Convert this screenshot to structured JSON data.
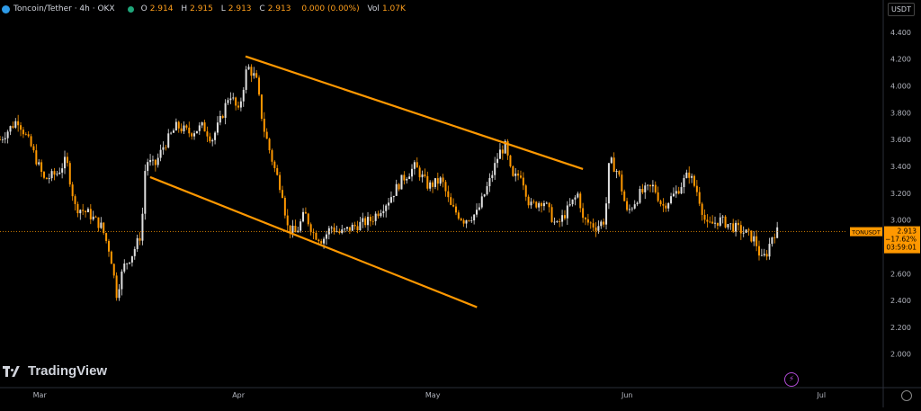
{
  "header": {
    "symbol_title": "Toncoin/Tether · 4h · OKX",
    "ohlc": [
      {
        "k": "O",
        "v": "2.914"
      },
      {
        "k": "H",
        "v": "2.915"
      },
      {
        "k": "L",
        "v": "2.913"
      },
      {
        "k": "C",
        "v": "2.913"
      },
      {
        "k": "",
        "v": "0.000 (0.00%)"
      },
      {
        "k": "Vol",
        "v": "1.07K"
      }
    ]
  },
  "currency_button": "USDT",
  "logo_text": "TradingView",
  "price_tag": {
    "symbol": "TONUSDT",
    "price": "2.913",
    "change": "−17.62%",
    "countdown": "03:59:01"
  },
  "colors": {
    "background": "#000000",
    "candle": "#e0e0e0",
    "accent_orange": "#ff9800",
    "axis_text": "#b2b5be",
    "current_price_line": "#ff9800",
    "tag_bg": "#ff9800"
  },
  "icons": [
    "toncoin-icon",
    "market-open-dot-icon",
    "tradingview-logo-icon",
    "flash-icon",
    "settings-gear-icon"
  ],
  "chart_data": {
    "type": "line",
    "title": "",
    "xlabel": "",
    "ylabel": "",
    "x_tick_labels": [
      "Mar",
      "Apr",
      "May",
      "Jun",
      "Jul"
    ],
    "x_tick_positions": [
      0.045,
      0.27,
      0.49,
      0.71,
      0.93
    ],
    "y_ticks": [
      "2.000",
      "2.200",
      "2.400",
      "2.600",
      "2.800",
      "3.000",
      "3.200",
      "3.400",
      "3.600",
      "3.800",
      "4.000",
      "4.200",
      "4.400"
    ],
    "ylim": [
      1.75,
      4.52
    ],
    "grid": false,
    "series": [
      {
        "values": [
          [
            0.0,
            3.6
          ],
          [
            0.02,
            3.75
          ],
          [
            0.035,
            3.55
          ],
          [
            0.05,
            3.3
          ],
          [
            0.065,
            3.35
          ],
          [
            0.075,
            3.45
          ],
          [
            0.085,
            3.1
          ],
          [
            0.1,
            3.05
          ],
          [
            0.115,
            2.95
          ],
          [
            0.125,
            2.75
          ],
          [
            0.132,
            2.45
          ],
          [
            0.14,
            2.65
          ],
          [
            0.15,
            2.75
          ],
          [
            0.16,
            2.9
          ],
          [
            0.165,
            3.45
          ],
          [
            0.175,
            3.4
          ],
          [
            0.185,
            3.55
          ],
          [
            0.2,
            3.7
          ],
          [
            0.215,
            3.65
          ],
          [
            0.23,
            3.7
          ],
          [
            0.24,
            3.6
          ],
          [
            0.25,
            3.75
          ],
          [
            0.26,
            3.95
          ],
          [
            0.27,
            3.8
          ],
          [
            0.28,
            4.15
          ],
          [
            0.29,
            4.05
          ],
          [
            0.298,
            3.7
          ],
          [
            0.31,
            3.4
          ],
          [
            0.32,
            3.2
          ],
          [
            0.325,
            2.95
          ],
          [
            0.335,
            2.9
          ],
          [
            0.345,
            3.05
          ],
          [
            0.355,
            2.9
          ],
          [
            0.365,
            2.85
          ],
          [
            0.375,
            2.95
          ],
          [
            0.385,
            2.9
          ],
          [
            0.4,
            2.95
          ],
          [
            0.42,
            3.0
          ],
          [
            0.44,
            3.15
          ],
          [
            0.455,
            3.3
          ],
          [
            0.47,
            3.4
          ],
          [
            0.485,
            3.25
          ],
          [
            0.5,
            3.3
          ],
          [
            0.51,
            3.1
          ],
          [
            0.525,
            3.0
          ],
          [
            0.54,
            3.05
          ],
          [
            0.555,
            3.3
          ],
          [
            0.565,
            3.5
          ],
          [
            0.572,
            3.55
          ],
          [
            0.58,
            3.3
          ],
          [
            0.59,
            3.35
          ],
          [
            0.6,
            3.1
          ],
          [
            0.615,
            3.15
          ],
          [
            0.63,
            2.95
          ],
          [
            0.645,
            3.1
          ],
          [
            0.655,
            3.2
          ],
          [
            0.66,
            3.0
          ],
          [
            0.675,
            2.95
          ],
          [
            0.685,
            3.0
          ],
          [
            0.69,
            3.45
          ],
          [
            0.7,
            3.35
          ],
          [
            0.71,
            3.05
          ],
          [
            0.725,
            3.2
          ],
          [
            0.74,
            3.25
          ],
          [
            0.75,
            3.1
          ],
          [
            0.765,
            3.2
          ],
          [
            0.78,
            3.35
          ],
          [
            0.79,
            3.2
          ],
          [
            0.8,
            2.95
          ],
          [
            0.815,
            3.0
          ],
          [
            0.83,
            2.95
          ],
          [
            0.845,
            2.9
          ],
          [
            0.855,
            2.85
          ],
          [
            0.862,
            2.7
          ],
          [
            0.868,
            2.75
          ],
          [
            0.875,
            2.9
          ],
          [
            0.88,
            2.913
          ]
        ]
      }
    ],
    "annotations": [
      {
        "type": "trendline",
        "color": "#ff9800",
        "from": [
          0.278,
          4.22
        ],
        "to": [
          0.66,
          3.38
        ]
      },
      {
        "type": "trendline",
        "color": "#ff9800",
        "from": [
          0.17,
          3.32
        ],
        "to": [
          0.54,
          2.35
        ]
      },
      {
        "type": "hline",
        "color": "#ff9800",
        "value": 2.913,
        "style": "dotted"
      }
    ]
  }
}
